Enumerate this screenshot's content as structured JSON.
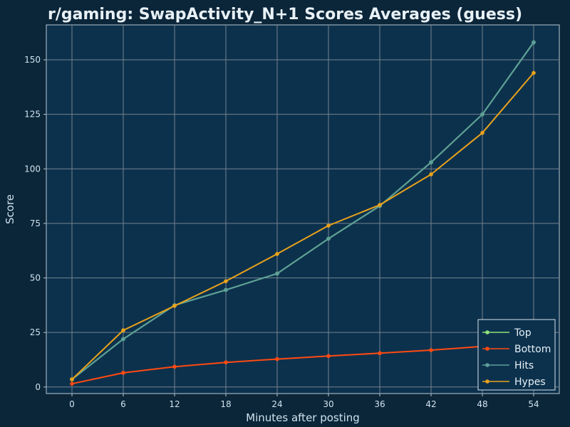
{
  "chart_data": {
    "type": "line",
    "title": "r/gaming: SwapActivity_N+1 Scores Averages (guess)",
    "xlabel": "Minutes after posting",
    "ylabel": "Score",
    "x": [
      0,
      6,
      12,
      18,
      24,
      30,
      36,
      42,
      48,
      54
    ],
    "xlim": [
      -3,
      57
    ],
    "ylim": [
      -3,
      166
    ],
    "xticks": [
      0,
      6,
      12,
      18,
      24,
      30,
      36,
      42,
      48,
      54
    ],
    "yticks": [
      0,
      25,
      50,
      75,
      100,
      125,
      150
    ],
    "grid": true,
    "legend_position": "bottom-right",
    "series": [
      {
        "name": "Top",
        "color": "#8fe37a",
        "values": [
          3.5,
          22,
          37.5,
          44.5,
          52,
          68,
          83,
          103,
          125,
          158
        ]
      },
      {
        "name": "Bottom",
        "color": "#ff4a12",
        "values": [
          1.5,
          6.5,
          9.3,
          11.3,
          12.8,
          14.2,
          15.5,
          16.9,
          18.6,
          20.8
        ]
      },
      {
        "name": "Hits",
        "color": "#5d9f98",
        "values": [
          3.5,
          22,
          37.5,
          44.5,
          52,
          68,
          83,
          103,
          125,
          158
        ]
      },
      {
        "name": "Hypes",
        "color": "#e9a21b",
        "values": [
          3.5,
          26,
          37.2,
          48.5,
          61,
          74,
          83.5,
          97.5,
          116.5,
          144
        ]
      }
    ]
  }
}
